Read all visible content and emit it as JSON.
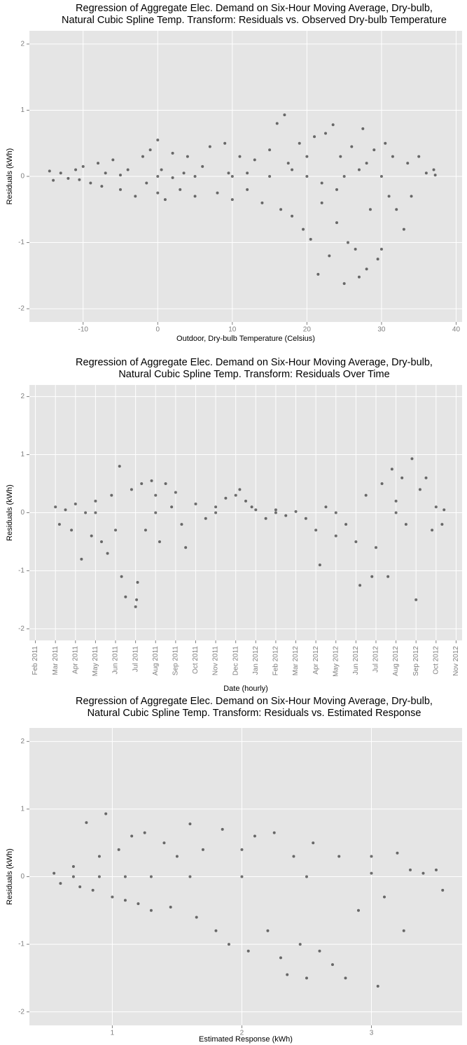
{
  "chart_data": [
    {
      "type": "scatter",
      "title": [
        "Regression of Aggregate Elec. Demand on Six-Hour Moving Average, Dry-bulb,",
        "Natural Cubic Spline Temp. Transform: Residuals vs. Observed Dry-bulb Temperature"
      ],
      "x_label": "Outdoor, Dry-bulb Temperature (Celsius)",
      "y_label": "Residuals (kWh)",
      "xlim": [
        -17.2,
        40.8
      ],
      "ylim": [
        -2.2,
        2.2
      ],
      "xticks": [
        -10,
        0,
        10,
        20,
        30,
        40
      ],
      "yticks": [
        -2,
        -1,
        0,
        1,
        2
      ],
      "grid": true,
      "color": "#000000",
      "x": [
        -14.5,
        -14,
        -13,
        -12,
        -11,
        -10.5,
        -10,
        -9,
        -8,
        -7.5,
        -7,
        -6,
        -5,
        -4,
        -3,
        -2,
        -1.5,
        -1,
        0,
        0,
        0.5,
        1,
        2,
        3,
        3.5,
        4,
        5,
        6,
        7,
        8,
        9,
        9.5,
        10,
        11,
        12,
        13,
        14,
        15,
        16,
        16.5,
        17,
        17.5,
        18,
        19,
        19.5,
        20,
        20.5,
        21,
        21.5,
        22,
        22.5,
        23,
        23.5,
        24,
        24.5,
        25,
        25.5,
        26,
        26.5,
        27,
        27.5,
        28,
        28.5,
        29,
        29.5,
        30,
        30.5,
        31,
        31.5,
        32,
        33,
        33.5,
        34,
        35,
        36,
        37,
        37.2,
        0,
        5,
        10,
        15,
        20,
        25,
        30,
        27,
        22,
        12,
        -5,
        2,
        18,
        24,
        28
      ],
      "values": [
        0.08,
        -0.06,
        0.05,
        -0.03,
        0.1,
        -0.05,
        0.15,
        -0.1,
        0.2,
        -0.15,
        0.05,
        0.25,
        -0.2,
        0.1,
        -0.3,
        0.3,
        -0.1,
        0.4,
        0.55,
        -0.25,
        0.1,
        -0.35,
        0.35,
        -0.2,
        0.05,
        0.3,
        -0.3,
        0.15,
        0.45,
        -0.25,
        0.5,
        0.05,
        -0.35,
        0.3,
        -0.2,
        0.25,
        -0.4,
        0.4,
        0.8,
        -0.5,
        0.93,
        0.2,
        -0.6,
        0.5,
        -0.8,
        0.3,
        -0.95,
        0.6,
        -1.48,
        -0.4,
        0.65,
        -1.2,
        0.78,
        -0.7,
        0.3,
        -1.62,
        -1.0,
        0.45,
        -1.1,
        -1.52,
        0.72,
        -1.4,
        -0.5,
        0.4,
        -1.25,
        -1.1,
        0.5,
        -0.3,
        0.3,
        -0.5,
        -0.8,
        0.2,
        -0.3,
        0.3,
        0.05,
        0.1,
        0.02,
        0,
        0,
        0,
        0,
        0,
        0,
        0,
        0.1,
        -0.1,
        0.05,
        0.02,
        -0.02,
        0.1,
        -0.2,
        0.2
      ]
    },
    {
      "type": "scatter",
      "title": [
        "Regression of Aggregate Elec. Demand on Six-Hour Moving Average, Dry-bulb,",
        "Natural Cubic Spline Temp. Transform: Residuals Over Time"
      ],
      "x_label": "Date (hourly)",
      "y_label": "Residuals (kWh)",
      "xlim": [
        -0.3,
        21.3
      ],
      "ylim": [
        -2.2,
        2.2
      ],
      "xticks": [
        {
          "value": 0,
          "label": "Feb 2011"
        },
        {
          "value": 1,
          "label": "Mar 2011"
        },
        {
          "value": 2,
          "label": "Apr 2011"
        },
        {
          "value": 3,
          "label": "May 2011"
        },
        {
          "value": 4,
          "label": "Jun 2011"
        },
        {
          "value": 5,
          "label": "Jul 2011"
        },
        {
          "value": 6,
          "label": "Aug 2011"
        },
        {
          "value": 7,
          "label": "Sep 2011"
        },
        {
          "value": 8,
          "label": "Oct 2011"
        },
        {
          "value": 9,
          "label": "Nov 2011"
        },
        {
          "value": 10,
          "label": "Dec 2011"
        },
        {
          "value": 11,
          "label": "Jan 2012"
        },
        {
          "value": 12,
          "label": "Feb 2012"
        },
        {
          "value": 13,
          "label": "Mar 2012"
        },
        {
          "value": 14,
          "label": "Apr 2012"
        },
        {
          "value": 15,
          "label": "May 2012"
        },
        {
          "value": 16,
          "label": "Jun 2012"
        },
        {
          "value": 17,
          "label": "Jul 2012"
        },
        {
          "value": 18,
          "label": "Aug 2012"
        },
        {
          "value": 19,
          "label": "Sep 2012"
        },
        {
          "value": 20,
          "label": "Oct 2012"
        },
        {
          "value": 21,
          "label": "Nov 2012"
        }
      ],
      "yticks": [
        -2,
        -1,
        0,
        1,
        2
      ],
      "grid": true,
      "color": "#000000",
      "x": [
        1,
        1.2,
        1.5,
        1.8,
        2,
        2.3,
        2.5,
        2.8,
        3,
        3.3,
        3.6,
        3.8,
        4,
        4.2,
        4.3,
        4.5,
        4.8,
        5,
        5.05,
        5.1,
        5.3,
        5.5,
        5.8,
        6,
        6.2,
        6.5,
        6.8,
        7,
        7.3,
        7.5,
        8,
        8.5,
        9,
        9.5,
        10,
        10.2,
        10.5,
        10.8,
        11,
        11.5,
        12,
        12.5,
        13,
        13.5,
        14,
        14.2,
        14.5,
        15,
        15.5,
        16,
        16.2,
        16.5,
        16.8,
        17,
        17.3,
        17.6,
        17.8,
        18,
        18.3,
        18.5,
        18.8,
        19,
        19.2,
        19.5,
        19.8,
        20,
        20.3,
        20.4,
        3,
        6,
        9,
        12,
        15,
        18
      ],
      "values": [
        0.1,
        -0.2,
        0.05,
        -0.3,
        0.15,
        -0.8,
        0,
        -0.4,
        0.2,
        -0.5,
        -0.7,
        0.3,
        -0.3,
        0.8,
        -1.1,
        -1.45,
        0.4,
        -1.62,
        -1.5,
        -1.2,
        0.5,
        -0.3,
        0.55,
        0.3,
        -0.5,
        0.5,
        0.1,
        0.35,
        -0.2,
        -0.6,
        0.15,
        -0.1,
        0.1,
        0.25,
        0.3,
        0.4,
        0.2,
        0.1,
        0.05,
        -0.1,
        0.05,
        -0.05,
        0.02,
        -0.1,
        -0.3,
        -0.9,
        0.1,
        -0.4,
        -0.2,
        -0.5,
        -1.25,
        0.3,
        -1.1,
        -0.6,
        0.5,
        -1.1,
        0.75,
        0.2,
        0.6,
        -0.2,
        0.93,
        -1.5,
        0.4,
        0.6,
        -0.3,
        0.1,
        -0.2,
        0.05,
        0,
        0,
        0,
        0,
        0,
        0
      ]
    },
    {
      "type": "scatter",
      "title": [
        "Regression of Aggregate Elec. Demand on Six-Hour Moving Average, Dry-bulb,",
        "Natural Cubic Spline Temp. Transform: Residuals vs. Estimated Response"
      ],
      "x_label": "Estimated Response (kWh)",
      "y_label": "Residuals (kWh)",
      "xlim": [
        0.36,
        3.7
      ],
      "ylim": [
        -2.2,
        2.2
      ],
      "xticks": [
        1,
        2,
        3
      ],
      "yticks": [
        -2,
        -1,
        0,
        1,
        2
      ],
      "grid": true,
      "color": "#000000",
      "x": [
        0.55,
        0.6,
        0.7,
        0.75,
        0.8,
        0.85,
        0.9,
        0.95,
        1.0,
        1.05,
        1.1,
        1.15,
        1.2,
        1.25,
        1.3,
        1.4,
        1.45,
        1.5,
        1.6,
        1.65,
        1.7,
        1.8,
        1.85,
        1.9,
        2.0,
        2.05,
        2.1,
        2.2,
        2.25,
        2.3,
        2.35,
        2.4,
        2.45,
        2.5,
        2.55,
        2.6,
        2.7,
        2.75,
        2.8,
        2.9,
        3.0,
        3.05,
        3.1,
        3.2,
        3.25,
        3.3,
        3.4,
        3.5,
        3.55,
        0.7,
        0.9,
        1.1,
        1.3,
        1.6,
        2,
        2.5,
        3
      ],
      "values": [
        0.05,
        -0.1,
        0.15,
        -0.15,
        0.8,
        -0.2,
        0.3,
        0.93,
        -0.3,
        0.4,
        -0.35,
        0.6,
        -0.4,
        0.65,
        -0.5,
        0.5,
        -0.45,
        0.3,
        0.78,
        -0.6,
        0.4,
        -0.8,
        0.7,
        -1.0,
        0.4,
        -1.1,
        0.6,
        -0.8,
        0.65,
        -1.2,
        -1.45,
        0.3,
        -1.0,
        -1.5,
        0.5,
        -1.1,
        -1.3,
        0.3,
        -1.5,
        -0.5,
        0.3,
        -1.62,
        -0.3,
        0.35,
        -0.8,
        0.1,
        0.05,
        0.1,
        -0.2,
        0,
        0,
        0,
        0,
        0,
        0,
        0,
        0.05
      ]
    }
  ]
}
